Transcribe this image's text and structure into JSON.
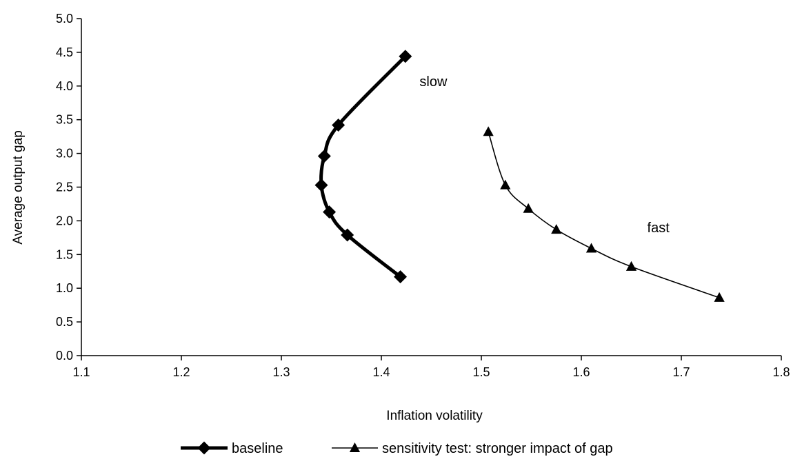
{
  "chart_data": {
    "type": "line",
    "title": "",
    "xlabel": "Inflation volatility",
    "ylabel": "Average output gap",
    "xlim": [
      1.1,
      1.8
    ],
    "ylim": [
      0.0,
      5.0
    ],
    "x_ticks": [
      "1.1",
      "1.2",
      "1.3",
      "1.4",
      "1.5",
      "1.6",
      "1.7",
      "1.8"
    ],
    "y_ticks": [
      "0.0",
      "0.5",
      "1.0",
      "1.5",
      "2.0",
      "2.5",
      "3.0",
      "3.5",
      "4.0",
      "4.5",
      "5.0"
    ],
    "grid": false,
    "legend_position": "bottom",
    "series": [
      {
        "name": "baseline",
        "marker": "diamond",
        "color": "#000000",
        "points": [
          {
            "x": 1.424,
            "y": 4.44
          },
          {
            "x": 1.357,
            "y": 3.42
          },
          {
            "x": 1.343,
            "y": 2.96
          },
          {
            "x": 1.34,
            "y": 2.53
          },
          {
            "x": 1.348,
            "y": 2.13
          },
          {
            "x": 1.366,
            "y": 1.79
          },
          {
            "x": 1.419,
            "y": 1.17
          }
        ]
      },
      {
        "name": "sensitivity test: stronger impact of gap",
        "marker": "triangle",
        "color": "#000000",
        "points": [
          {
            "x": 1.507,
            "y": 3.32
          },
          {
            "x": 1.524,
            "y": 2.53
          },
          {
            "x": 1.547,
            "y": 2.18
          },
          {
            "x": 1.575,
            "y": 1.87
          },
          {
            "x": 1.61,
            "y": 1.59
          },
          {
            "x": 1.65,
            "y": 1.32
          },
          {
            "x": 1.738,
            "y": 0.86
          }
        ]
      }
    ],
    "annotations": [
      {
        "text": "slow",
        "x": 1.452,
        "y": 4.0
      },
      {
        "text": "fast",
        "x": 1.677,
        "y": 1.83
      }
    ]
  }
}
